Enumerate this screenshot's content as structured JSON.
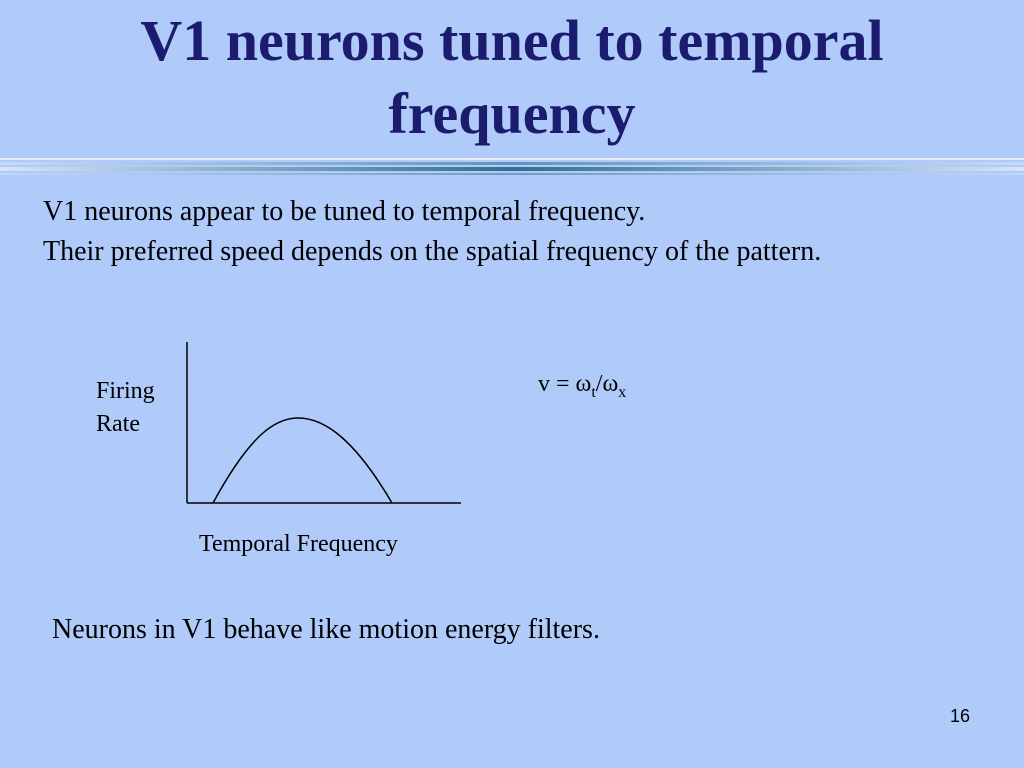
{
  "slide": {
    "title_lines": [
      "V1 neurons tuned to temporal",
      "frequency"
    ],
    "body_lines": [
      "V1 neurons appear to be tuned to temporal frequency.",
      "Their preferred speed depends on the spatial frequency of the pattern."
    ],
    "diagram": {
      "y_label_lines": [
        "Firing",
        "Rate"
      ],
      "x_label": "Temporal Frequency"
    },
    "equation": {
      "lhs": "v = ω",
      "sub1": "t",
      "mid": "/ω",
      "sub2": "x"
    },
    "footer_text": "Neurons in V1 behave like motion energy filters.",
    "page_number": "16"
  }
}
